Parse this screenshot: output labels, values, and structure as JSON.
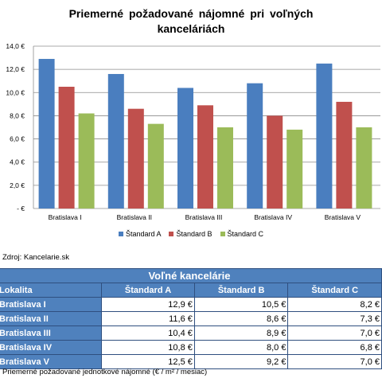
{
  "chart_data": {
    "type": "bar",
    "title": "Priemerné požadované nájomné pri voľných kanceláriách",
    "categories": [
      "Bratislava I",
      "Bratislava II",
      "Bratislava III",
      "Bratislava IV",
      "Bratislava V"
    ],
    "series": [
      {
        "name": "Štandard A",
        "color": "#4a7ebf",
        "values": [
          12.9,
          11.6,
          10.4,
          10.8,
          12.5
        ]
      },
      {
        "name": "Štandard B",
        "color": "#c0504d",
        "values": [
          10.5,
          8.6,
          8.9,
          8.0,
          9.2
        ]
      },
      {
        "name": "Štandard C",
        "color": "#9bbb59",
        "values": [
          8.2,
          7.3,
          7.0,
          6.8,
          7.0
        ]
      }
    ],
    "ylim": [
      0,
      14
    ],
    "yticks": [
      0,
      2,
      4,
      6,
      8,
      10,
      12,
      14
    ],
    "ytick_labels": [
      "-  €",
      "2,0 €",
      "4,0 €",
      "6,0 €",
      "8,0 €",
      "10,0 €",
      "12,0 €",
      "14,0 €"
    ],
    "grid": true,
    "legend_position": "bottom"
  },
  "source_text": "Zdroj: Kancelarie.sk",
  "table": {
    "title": "Voľné kancelárie",
    "headers": [
      "Lokalita",
      "Štandard A",
      "Štandard B",
      "Štandard C"
    ],
    "rows": [
      [
        "Bratislava I",
        "12,9 €",
        "10,5 €",
        "8,2 €"
      ],
      [
        "Bratislava II",
        "11,6 €",
        "8,6 €",
        "7,3 €"
      ],
      [
        "Bratislava III",
        "10,4 €",
        "8,9 €",
        "7,0 €"
      ],
      [
        "Bratislava IV",
        "10,8 €",
        "8,0 €",
        "6,8 €"
      ],
      [
        "Bratislava V",
        "12,5 €",
        "9,2 €",
        "7,0 €"
      ]
    ]
  },
  "footnote": "Priemerné požadované jednotkové nájomné (€ / m² / mesiac)"
}
